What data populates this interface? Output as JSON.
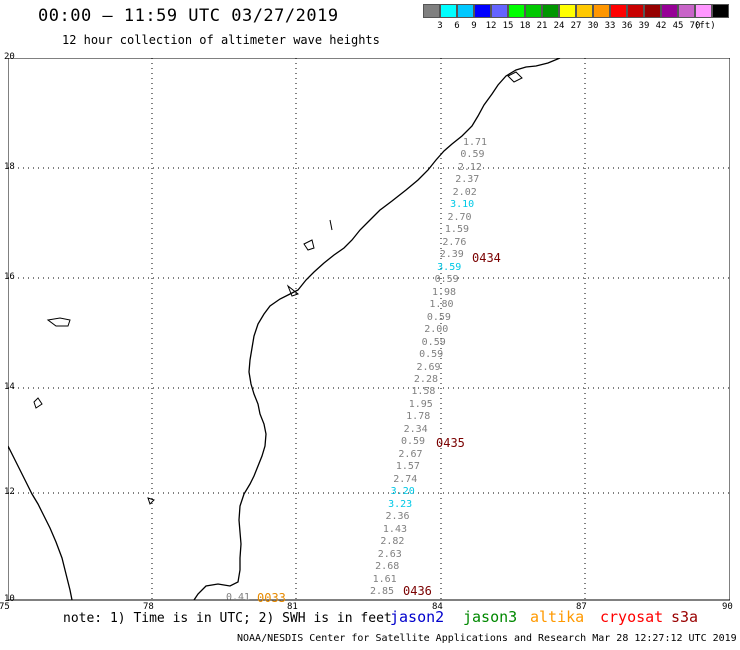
{
  "header": {
    "title": "00:00 – 11:59 UTC 03/27/2019",
    "subtitle": "12 hour collection of altimeter wave heights"
  },
  "colorbar": {
    "unit": "(ft)",
    "colors": [
      "#808080",
      "#00ffff",
      "#00c8ff",
      "#0000ff",
      "#6464ff",
      "#00ff00",
      "#00c800",
      "#009600",
      "#ffff00",
      "#ffc800",
      "#ff9600",
      "#ff0000",
      "#c80000",
      "#960000",
      "#960096",
      "#c864c8",
      "#ff96ff",
      "#000000"
    ],
    "labels": [
      "3",
      "6",
      "9",
      "12",
      "15",
      "18",
      "21",
      "24",
      "27",
      "30",
      "33",
      "36",
      "39",
      "42",
      "45",
      "70"
    ]
  },
  "axes": {
    "x_ticks": [
      "75",
      "78",
      "81",
      "84",
      "87",
      "90"
    ],
    "y_ticks": [
      "20",
      "18",
      "16",
      "14",
      "12",
      "10"
    ]
  },
  "observations": [
    {
      "v": "1.71",
      "c": "g"
    },
    {
      "v": "0.59",
      "c": "g"
    },
    {
      "v": "2.12",
      "c": "g"
    },
    {
      "v": "2.37",
      "c": "g"
    },
    {
      "v": "2.02",
      "c": "g"
    },
    {
      "v": "3.10",
      "c": "c"
    },
    {
      "v": "2.70",
      "c": "g"
    },
    {
      "v": "1.59",
      "c": "g"
    },
    {
      "v": "2.76",
      "c": "g"
    },
    {
      "v": "2.39",
      "c": "g"
    },
    {
      "v": "3.59",
      "c": "c"
    },
    {
      "v": "0.59",
      "c": "g"
    },
    {
      "v": "1.98",
      "c": "g"
    },
    {
      "v": "1.80",
      "c": "g"
    },
    {
      "v": "0.59",
      "c": "g"
    },
    {
      "v": "2.00",
      "c": "g"
    },
    {
      "v": "0.59",
      "c": "g"
    },
    {
      "v": "0.59",
      "c": "g"
    },
    {
      "v": "2.69",
      "c": "g"
    },
    {
      "v": "2.28",
      "c": "g"
    },
    {
      "v": "1.58",
      "c": "g"
    },
    {
      "v": "1.95",
      "c": "g"
    },
    {
      "v": "1.78",
      "c": "g"
    },
    {
      "v": "2.34",
      "c": "g"
    },
    {
      "v": "0.59",
      "c": "g"
    },
    {
      "v": "2.67",
      "c": "g"
    },
    {
      "v": "1.57",
      "c": "g"
    },
    {
      "v": "2.74",
      "c": "g"
    },
    {
      "v": "3.20",
      "c": "c"
    },
    {
      "v": "3.23",
      "c": "c"
    },
    {
      "v": "2.36",
      "c": "g"
    },
    {
      "v": "1.43",
      "c": "g"
    },
    {
      "v": "2.82",
      "c": "g"
    },
    {
      "v": "2.63",
      "c": "g"
    },
    {
      "v": "2.68",
      "c": "g"
    },
    {
      "v": "1.61",
      "c": "g"
    },
    {
      "v": "2.85",
      "c": "g"
    }
  ],
  "extra_points": [
    {
      "v": "0.41",
      "c": "g"
    }
  ],
  "time_labels": {
    "t1": "0434",
    "t2": "0435",
    "t3": "0436",
    "t4": "0033"
  },
  "footer": {
    "note": "note: 1) Time is in UTC; 2) SWH is in feet",
    "credit": "NOAA/NESDIS Center for Satellite Applications and Research   Mar 28 12:27:12 UTC 2019"
  },
  "legend": [
    {
      "name": "jason2",
      "color": "#0000cc"
    },
    {
      "name": "jason3",
      "color": "#008800"
    },
    {
      "name": "altika",
      "color": "#ff9900"
    },
    {
      "name": "cryosat",
      "color": "#ff0000"
    },
    {
      "name": "s3a",
      "color": "#990000"
    }
  ]
}
